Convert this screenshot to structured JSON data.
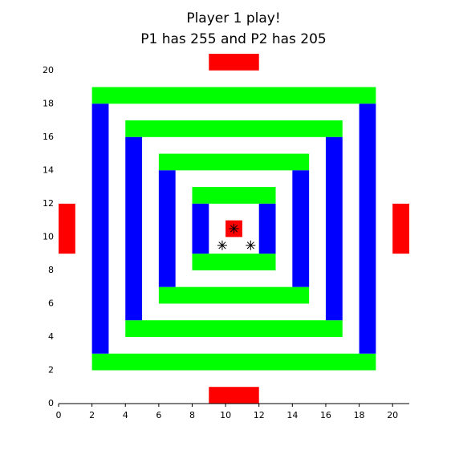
{
  "header": {
    "title": [
      "Player 1 play!",
      "P1 has 255  and  P2 has 205"
    ]
  },
  "board": {
    "xlim": [
      0,
      21
    ],
    "ylim": [
      0,
      21
    ],
    "xticks": [
      0,
      2,
      4,
      6,
      8,
      10,
      12,
      14,
      16,
      18,
      20
    ],
    "yticks": [
      0,
      2,
      4,
      6,
      8,
      10,
      12,
      14,
      16,
      18,
      20
    ],
    "pieces": [
      {
        "color": "#ff0000",
        "rects": [
          [
            9,
            12,
            20,
            21
          ],
          [
            9,
            12,
            0,
            1
          ],
          [
            0,
            1,
            9,
            12
          ],
          [
            20,
            21,
            9,
            12
          ],
          [
            10,
            11,
            10,
            11
          ]
        ]
      },
      {
        "color": "#00ff00",
        "rects": [
          [
            2,
            19,
            18,
            19
          ],
          [
            2,
            19,
            2,
            3
          ],
          [
            4,
            17,
            16,
            17
          ],
          [
            4,
            17,
            4,
            5
          ],
          [
            6,
            15,
            14,
            15
          ],
          [
            6,
            15,
            6,
            7
          ],
          [
            8,
            13,
            12,
            13
          ],
          [
            8,
            13,
            8,
            9
          ]
        ]
      },
      {
        "color": "#0000ff",
        "rects": [
          [
            2,
            3,
            3,
            18
          ],
          [
            18,
            19,
            3,
            18
          ],
          [
            4,
            5,
            5,
            16
          ],
          [
            16,
            17,
            5,
            16
          ],
          [
            6,
            7,
            7,
            14
          ],
          [
            14,
            15,
            7,
            14
          ],
          [
            8,
            9,
            9,
            12
          ],
          [
            12,
            13,
            9,
            12
          ]
        ]
      }
    ],
    "markers": {
      "x": [
        10.5,
        9.8,
        11.5
      ],
      "y": [
        10.5,
        9.5,
        9.5
      ]
    }
  }
}
